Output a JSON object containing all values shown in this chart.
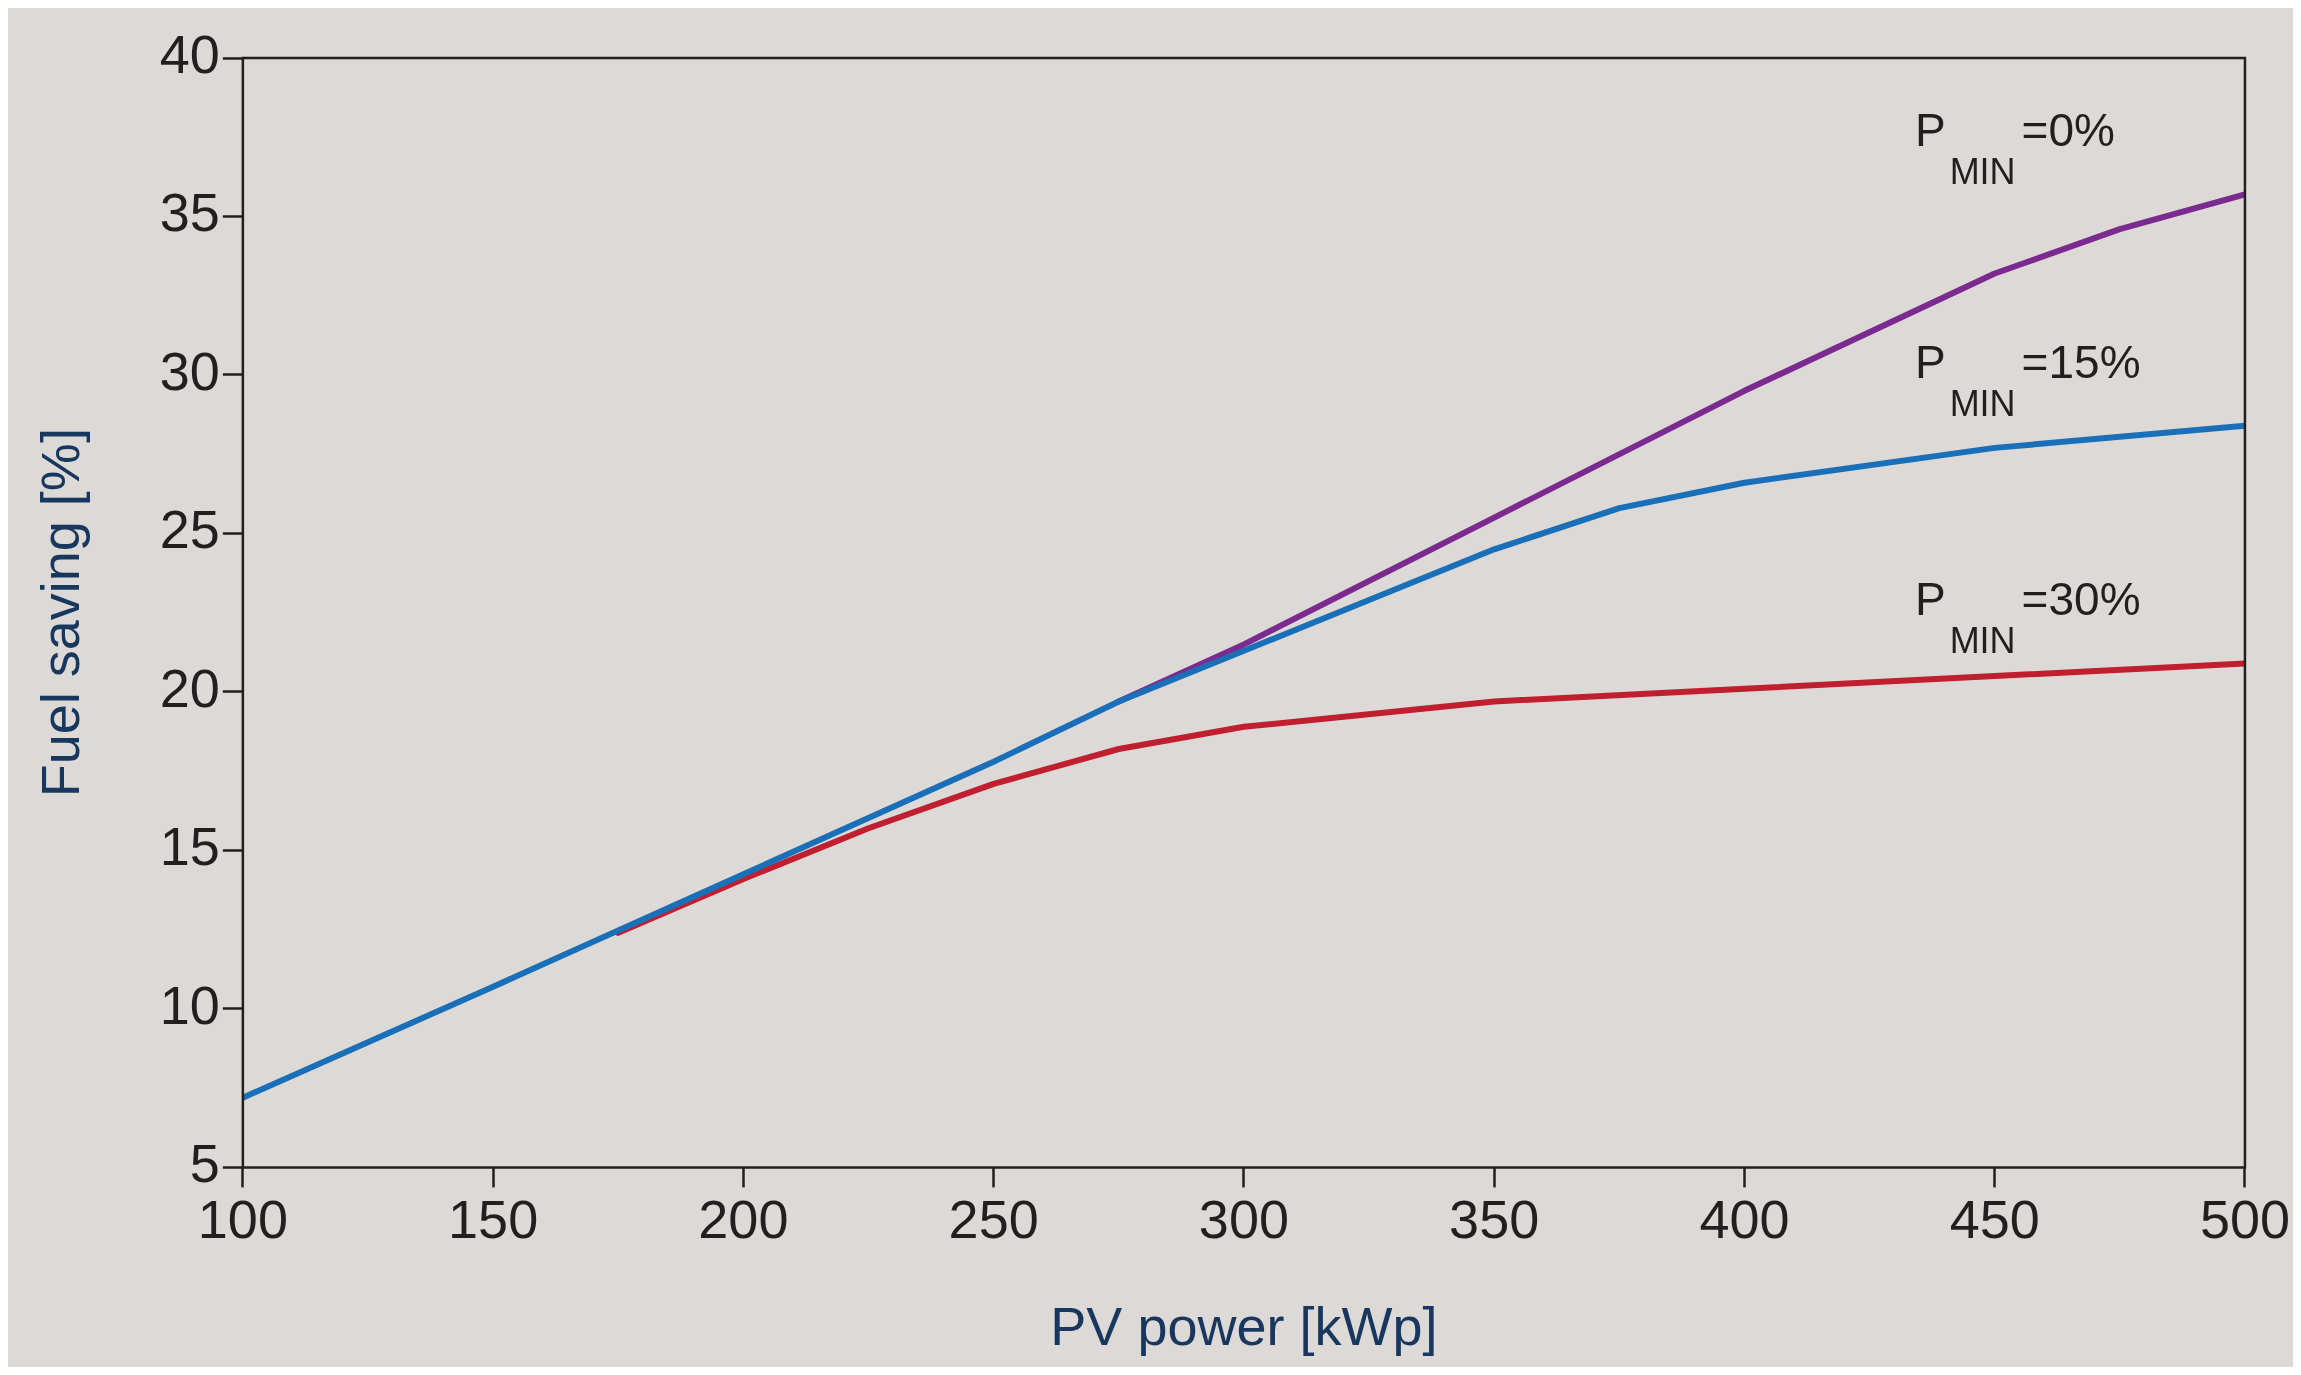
{
  "chart_data": {
    "type": "line",
    "xlabel": "PV power [kWp]",
    "ylabel": "Fuel saving [%]",
    "xlim": [
      100,
      500
    ],
    "xticks": [
      100,
      150,
      200,
      250,
      300,
      350,
      400,
      450,
      500
    ],
    "ylim": [
      5,
      40
    ],
    "yticks": [
      5,
      10,
      15,
      20,
      25,
      30,
      35,
      40
    ],
    "grid": false,
    "legend": false,
    "marker": "none",
    "line_style": "solid",
    "series": [
      {
        "name": "P$_{MIN}$=0%",
        "color": "#7b2a90",
        "x": [
          275,
          300,
          350,
          400,
          450,
          475,
          500
        ],
        "values": [
          19.7,
          21.5,
          25.5,
          29.5,
          33.2,
          34.6,
          35.7
        ]
      },
      {
        "name": "P$_{MIN}$=15%",
        "color": "#1a70b8",
        "x": [
          100,
          150,
          200,
          250,
          275,
          300,
          325,
          350,
          375,
          400,
          450,
          500
        ],
        "values": [
          7.2,
          10.7,
          14.25,
          17.8,
          19.7,
          21.3,
          22.9,
          24.5,
          25.8,
          26.6,
          27.7,
          28.4
        ]
      },
      {
        "name": "P$_{MIN}$=30%",
        "color": "#c01f2f",
        "x": [
          175,
          200,
          225,
          250,
          275,
          300,
          350,
          400,
          450,
          500
        ],
        "values": [
          12.4,
          14.1,
          15.7,
          17.1,
          18.2,
          18.9,
          19.7,
          20.1,
          20.5,
          20.9
        ]
      }
    ]
  }
}
